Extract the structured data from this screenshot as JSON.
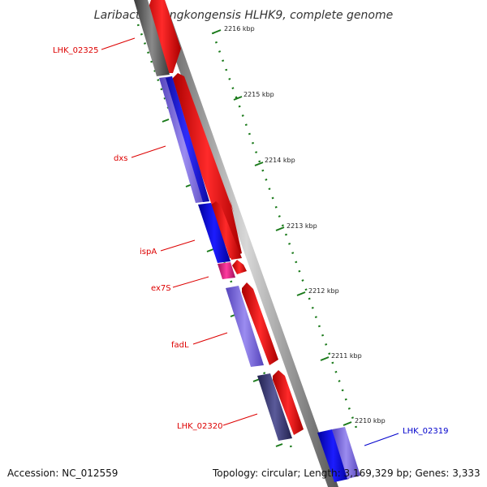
{
  "title": "Laribacter hongkongensis HLHK9, complete genome",
  "footer": {
    "accession": "Accession: NC_012559",
    "info": "Topology: circular; Length: 3,169,329 bp; Genes: 3,333"
  },
  "colors": {
    "backbone": "#8a8a8a",
    "tick": "#1a7a1a",
    "forward_gene": "#ff0000",
    "reverse_gene_blue": "#0000ff",
    "reverse_gene_purple": "#7b68ee",
    "reverse_gene_dark": "#3c3c7c",
    "rna_gene": "#e0207c",
    "gray_gene": "#555555",
    "label_red": "#dd0000",
    "label_blue": "#0000cc"
  },
  "ticks": [
    {
      "label": "2216 kbp"
    },
    {
      "label": "2215 kbp"
    },
    {
      "label": "2214 kbp"
    },
    {
      "label": "2213 kbp"
    },
    {
      "label": "2212 kbp"
    },
    {
      "label": "2211 kbp"
    },
    {
      "label": "2210 kbp"
    }
  ],
  "gene_labels": [
    {
      "text": "LHK_02325",
      "color": "#dd0000"
    },
    {
      "text": "dxs",
      "color": "#dd0000"
    },
    {
      "text": "ispA",
      "color": "#dd0000"
    },
    {
      "text": "ex7S",
      "color": "#dd0000"
    },
    {
      "text": "fadL",
      "color": "#dd0000"
    },
    {
      "text": "LHK_02320",
      "color": "#dd0000"
    },
    {
      "text": "LHK_02319",
      "color": "#0000cc"
    }
  ]
}
